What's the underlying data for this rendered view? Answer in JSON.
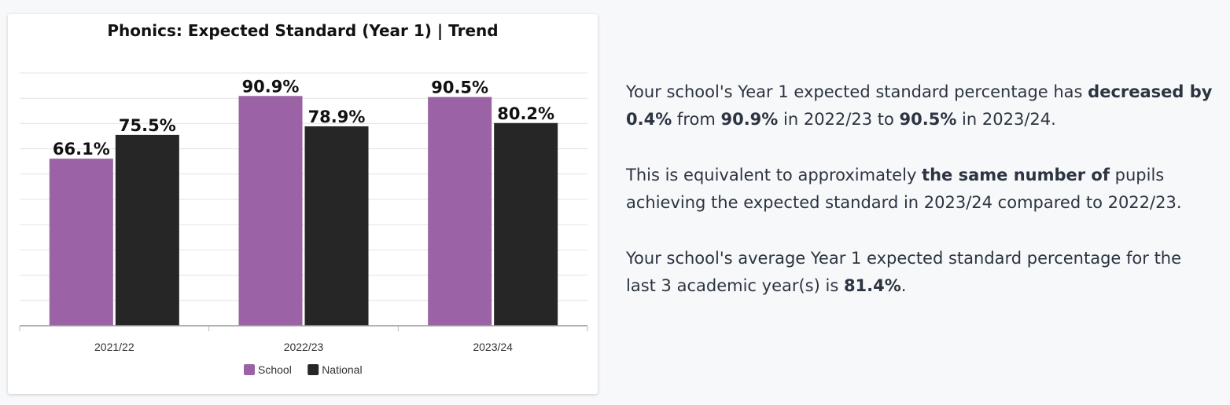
{
  "chart_data": {
    "type": "bar",
    "title": "Phonics: Expected Standard (Year 1) | Trend",
    "categories": [
      "2021/22",
      "2022/23",
      "2023/24"
    ],
    "series": [
      {
        "name": "School",
        "color": "#9b63a5",
        "values": [
          66.1,
          90.9,
          90.5
        ],
        "labels": [
          "66.1%",
          "90.9%",
          "90.5%"
        ]
      },
      {
        "name": "National",
        "color": "#262626",
        "values": [
          75.5,
          78.9,
          80.2
        ],
        "labels": [
          "75.5%",
          "78.9%",
          "80.2%"
        ]
      }
    ],
    "ylim": [
      0,
      100
    ],
    "grid": true,
    "legend": "bottom-center"
  },
  "summary": {
    "p1": {
      "t1": "Your school's Year 1 expected standard percentage has ",
      "b1": "decreased by 0.4%",
      "t2": " from ",
      "b2": "90.9%",
      "t3": " in 2022/23 to ",
      "b3": "90.5%",
      "t4": " in 2023/24."
    },
    "p2": {
      "t1": "This is equivalent to approximately ",
      "b1": "the same number of",
      "t2": " pupils achieving the expected standard in 2023/24 compared to 2022/23."
    },
    "p3": {
      "t1": "Your school's average Year 1 expected standard percentage for the last 3 academic year(s) is ",
      "b1": "81.4%",
      "t2": "."
    }
  }
}
